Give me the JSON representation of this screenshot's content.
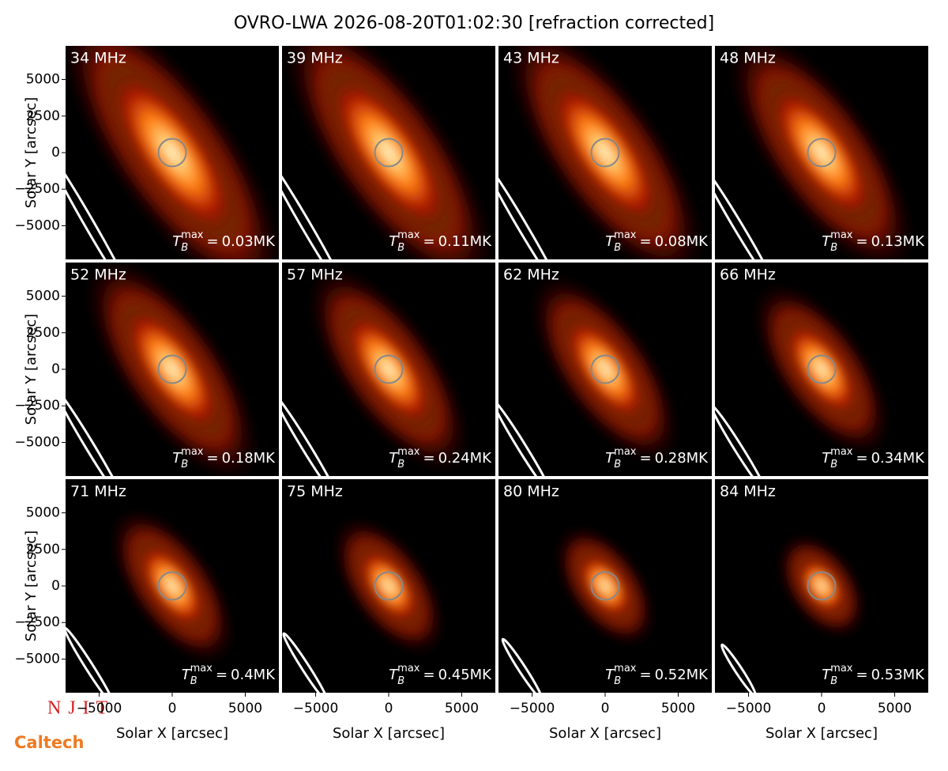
{
  "chart_data": {
    "type": "image_grid",
    "title": "OVRO-LWA 2026-08-20T01:02:30 [refraction corrected]",
    "xlabel": "Solar X [arcsec]",
    "ylabel": "Solar Y [arcsec]",
    "xlim": [
      -7300,
      7300
    ],
    "ylim": [
      -7300,
      7300
    ],
    "xticks": [
      {
        "value": -5000,
        "label": "−5000"
      },
      0,
      5000
    ],
    "yticks": [
      {
        "value": -5000,
        "label": "−5000"
      },
      {
        "value": -2500,
        "label": "−2500"
      },
      0,
      2500,
      5000
    ],
    "tmax_symbol": "T",
    "tmax_sub": "B",
    "tmax_sup": "max",
    "tmax_eq": "=",
    "categories": [
      "34 MHz",
      "39 MHz",
      "43 MHz",
      "48 MHz",
      "52 MHz",
      "57 MHz",
      "62 MHz",
      "66 MHz",
      "71 MHz",
      "75 MHz",
      "80 MHz",
      "84 MHz"
    ],
    "values": [
      0.03,
      0.11,
      0.08,
      0.13,
      0.18,
      0.24,
      0.28,
      0.34,
      0.4,
      0.45,
      0.52,
      0.53
    ],
    "value_labels": [
      "0.03MK",
      "0.11MK",
      "0.08MK",
      "0.13MK",
      "0.18MK",
      "0.24MK",
      "0.28MK",
      "0.34MK",
      "0.4MK",
      "0.45MK",
      "0.52MK",
      "0.53MK"
    ],
    "logos": [
      "NJIT",
      "Caltech"
    ]
  }
}
